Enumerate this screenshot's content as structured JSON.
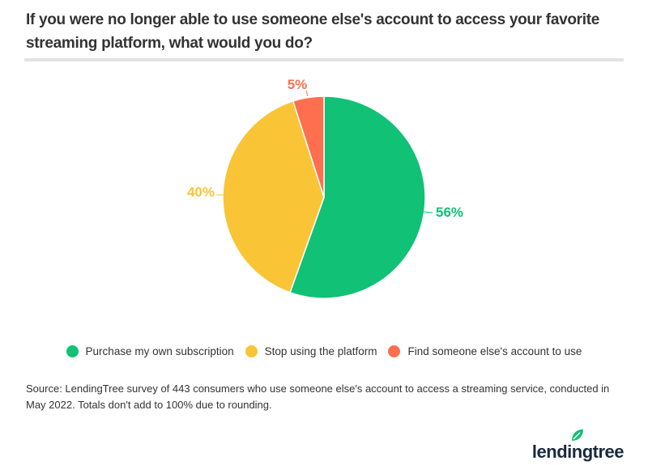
{
  "header": {
    "title": "If you were no longer able to use someone else's account to access your favorite streaming platform, what would you do?"
  },
  "chart_data": {
    "type": "pie",
    "title": "If you were no longer able to use someone else's account to access your favorite streaming platform, what would you do?",
    "categories": [
      "Purchase my own subscription",
      "Stop using the platform",
      "Find someone else's account to use"
    ],
    "values": [
      56,
      40,
      5
    ],
    "labels": [
      "56%",
      "40%",
      "5%"
    ],
    "colors": [
      "#10c176",
      "#f9c436",
      "#fd6f4f"
    ],
    "legend_position": "bottom"
  },
  "legend": {
    "items": [
      {
        "label": "Purchase my own subscription",
        "color": "#10c176"
      },
      {
        "label": "Stop using the platform",
        "color": "#f9c436"
      },
      {
        "label": "Find someone else's account to use",
        "color": "#fd6f4f"
      }
    ]
  },
  "footer": {
    "source": "Source: LendingTree survey of 443 consumers who use someone else's account to access a streaming service, conducted in May 2022. Totals don't add to 100% due to rounding.",
    "logo": "lendingtree"
  }
}
